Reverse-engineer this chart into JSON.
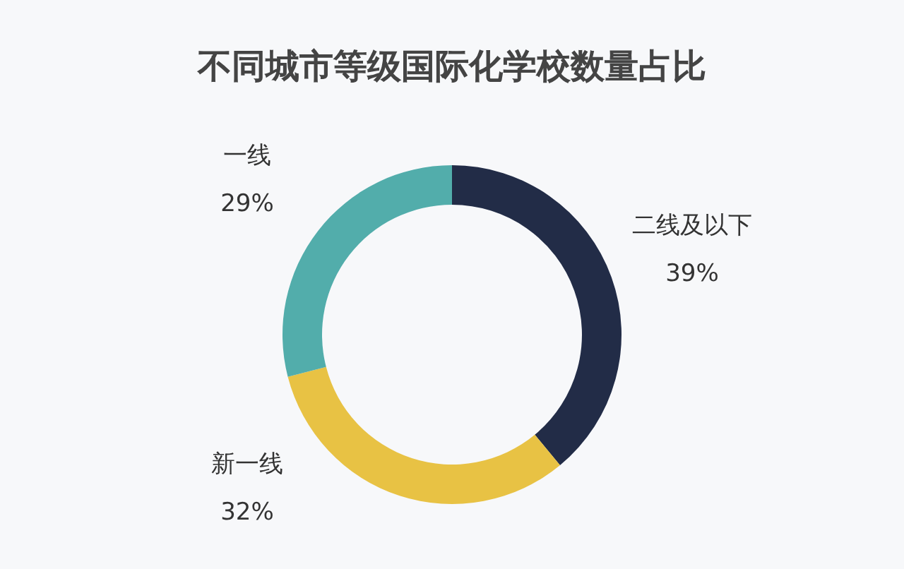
{
  "chart_data": {
    "type": "donut",
    "title": "不同城市等级国际化学校数量占比",
    "categories": [
      "二线及以下",
      "新一线",
      "一线"
    ],
    "values": [
      39,
      32,
      29
    ],
    "colors": [
      "#222c47",
      "#e8c244",
      "#52adab"
    ],
    "value_labels": [
      "39%",
      "32%",
      "29%"
    ]
  }
}
